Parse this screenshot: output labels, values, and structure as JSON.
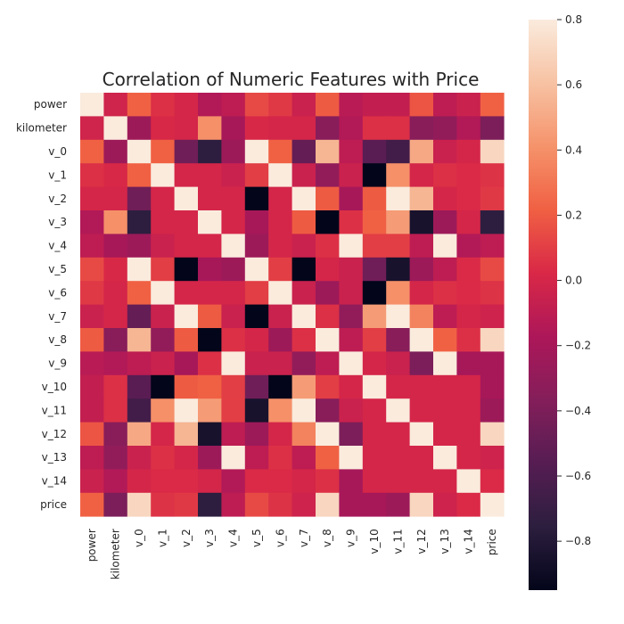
{
  "chart_data": {
    "type": "heatmap",
    "title": "Correlation of Numeric Features with Price",
    "xlabel": "",
    "ylabel": "",
    "labels": [
      "power",
      "kilometer",
      "v_0",
      "v_1",
      "v_2",
      "v_3",
      "v_4",
      "v_5",
      "v_6",
      "v_7",
      "v_8",
      "v_9",
      "v_10",
      "v_11",
      "v_12",
      "v_13",
      "v_14",
      "price"
    ],
    "values": [
      [
        1.0,
        -0.02,
        0.22,
        0.05,
        0.0,
        -0.15,
        -0.1,
        0.14,
        0.08,
        -0.05,
        0.2,
        -0.12,
        -0.08,
        -0.08,
        0.18,
        -0.1,
        -0.05,
        0.22
      ],
      [
        -0.02,
        1.0,
        -0.25,
        0.02,
        0.0,
        0.4,
        -0.2,
        0.02,
        0.0,
        0.0,
        -0.35,
        -0.15,
        0.05,
        0.05,
        -0.35,
        -0.3,
        -0.15,
        -0.4
      ],
      [
        0.22,
        -0.25,
        1.0,
        0.22,
        -0.45,
        -0.75,
        -0.25,
        0.85,
        0.22,
        -0.5,
        0.55,
        -0.1,
        -0.55,
        -0.65,
        0.5,
        -0.05,
        0.0,
        0.7
      ],
      [
        0.05,
        0.02,
        0.22,
        1.0,
        0.0,
        0.0,
        -0.05,
        0.1,
        0.95,
        -0.05,
        -0.3,
        -0.05,
        -0.95,
        0.4,
        0.0,
        0.05,
        0.03,
        0.06
      ],
      [
        0.0,
        0.0,
        -0.45,
        0.0,
        1.0,
        0.0,
        0.0,
        -0.95,
        0.0,
        0.95,
        0.2,
        -0.2,
        0.2,
        0.95,
        0.55,
        0.0,
        0.03,
        0.08
      ],
      [
        -0.15,
        0.4,
        -0.75,
        0.0,
        0.0,
        1.0,
        0.0,
        -0.2,
        0.0,
        0.2,
        -0.95,
        0.05,
        0.22,
        0.45,
        -0.85,
        -0.25,
        0.0,
        -0.75
      ],
      [
        -0.1,
        -0.2,
        -0.25,
        -0.05,
        0.0,
        0.0,
        1.0,
        -0.25,
        0.0,
        -0.05,
        0.05,
        0.95,
        0.1,
        0.1,
        -0.1,
        0.95,
        -0.15,
        -0.1
      ],
      [
        0.14,
        0.02,
        0.85,
        0.1,
        -0.95,
        -0.2,
        -0.25,
        1.0,
        0.1,
        -0.95,
        0.0,
        -0.05,
        -0.45,
        -0.85,
        -0.25,
        -0.1,
        0.03,
        0.14
      ],
      [
        0.08,
        0.0,
        0.22,
        0.95,
        0.0,
        0.0,
        0.0,
        0.1,
        1.0,
        -0.05,
        -0.25,
        -0.05,
        -0.95,
        0.4,
        0.0,
        0.05,
        0.03,
        0.06
      ],
      [
        -0.05,
        0.0,
        -0.5,
        -0.05,
        0.95,
        0.2,
        -0.05,
        -0.95,
        -0.05,
        1.0,
        0.05,
        -0.3,
        0.45,
        0.95,
        0.35,
        -0.1,
        0.0,
        -0.03
      ],
      [
        0.2,
        -0.35,
        0.55,
        -0.3,
        0.2,
        -0.95,
        0.05,
        0.0,
        -0.25,
        0.05,
        1.0,
        -0.1,
        0.1,
        -0.35,
        0.95,
        0.22,
        0.05,
        0.7
      ],
      [
        -0.12,
        -0.15,
        -0.1,
        -0.05,
        -0.2,
        0.05,
        0.95,
        -0.05,
        -0.05,
        -0.3,
        -0.1,
        1.0,
        0.0,
        -0.05,
        -0.4,
        0.95,
        -0.2,
        -0.2
      ],
      [
        -0.08,
        0.05,
        -0.55,
        -0.95,
        0.2,
        0.22,
        0.1,
        -0.45,
        -0.95,
        0.45,
        0.1,
        0.0,
        1.0,
        0.0,
        0.0,
        0.0,
        0.0,
        -0.2
      ],
      [
        -0.08,
        0.05,
        -0.65,
        0.4,
        0.95,
        0.45,
        0.1,
        -0.85,
        0.4,
        0.95,
        -0.35,
        -0.05,
        0.0,
        1.0,
        0.0,
        0.0,
        0.0,
        -0.25
      ],
      [
        0.18,
        -0.35,
        0.5,
        0.0,
        0.55,
        -0.85,
        -0.1,
        -0.25,
        0.0,
        0.35,
        0.95,
        -0.4,
        0.0,
        0.0,
        1.0,
        0.0,
        0.0,
        0.7
      ],
      [
        -0.1,
        -0.3,
        -0.05,
        0.05,
        0.0,
        -0.25,
        0.95,
        -0.1,
        0.05,
        -0.1,
        0.22,
        0.95,
        0.0,
        0.0,
        0.0,
        1.0,
        0.0,
        -0.03
      ],
      [
        -0.05,
        -0.15,
        0.0,
        0.03,
        0.03,
        0.0,
        -0.15,
        0.03,
        0.03,
        0.0,
        0.05,
        -0.2,
        0.0,
        0.0,
        0.0,
        0.0,
        1.0,
        0.03
      ],
      [
        0.22,
        -0.4,
        0.7,
        0.06,
        0.08,
        -0.75,
        -0.1,
        0.14,
        0.06,
        -0.03,
        0.7,
        -0.2,
        -0.2,
        -0.25,
        0.7,
        -0.03,
        0.03,
        1.0
      ]
    ],
    "colorbar": {
      "min": -0.95,
      "max": 0.8,
      "ticks": [
        0.8,
        0.6,
        0.4,
        0.2,
        0.0,
        -0.2,
        -0.4,
        -0.6,
        -0.8
      ],
      "tick_labels": [
        "0.8",
        "0.6",
        "0.4",
        "0.2",
        "0.0",
        "−0.2",
        "−0.4",
        "−0.6",
        "−0.8"
      ]
    },
    "colormap": "rocket",
    "colormap_stops": [
      "#03051a",
      "#2c1e3e",
      "#561d53",
      "#841e5a",
      "#ad1759",
      "#d92847",
      "#f06043",
      "#f5936b",
      "#f7c2a3",
      "#faebdd"
    ]
  }
}
